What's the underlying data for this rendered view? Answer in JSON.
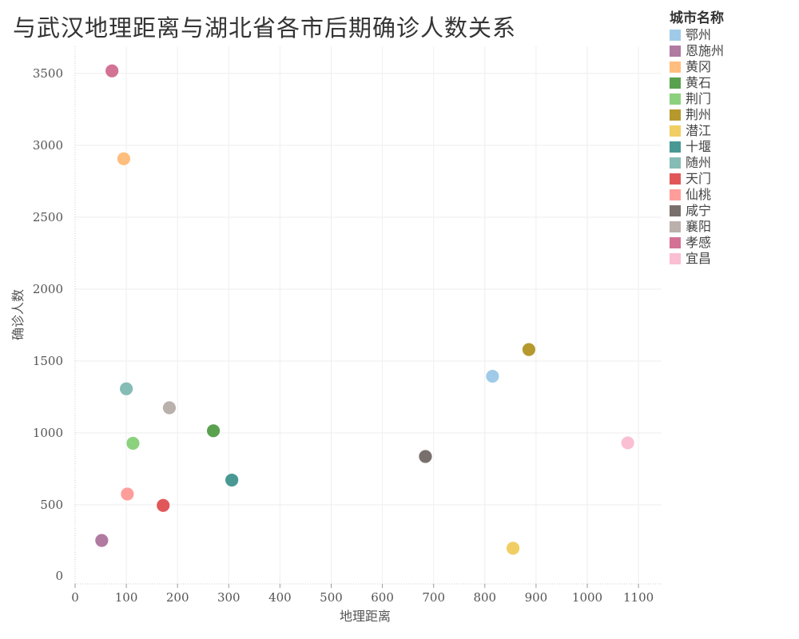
{
  "chart_data": {
    "type": "scatter",
    "title": "与武汉地理距离与湖北省各市后期确诊人数关系",
    "xlabel": "地理距离",
    "ylabel": "确诊人数",
    "xlim": [
      0,
      1150
    ],
    "ylim": [
      0,
      3650
    ],
    "xticks": [
      0,
      100,
      200,
      300,
      400,
      500,
      600,
      700,
      800,
      900,
      1000,
      1100
    ],
    "yticks": [
      0,
      500,
      1000,
      1500,
      2000,
      2500,
      3000,
      3500
    ],
    "grid": true,
    "legend_title": "城市名称",
    "legend_position": "top-right",
    "points": [
      {
        "name": "鄂州",
        "x": 815,
        "y": 1394,
        "color": "#a0cbe8"
      },
      {
        "name": "恩施州",
        "x": 52,
        "y": 252,
        "color": "#b07aa1"
      },
      {
        "name": "黄冈",
        "x": 95,
        "y": 2907,
        "color": "#ffbe7d"
      },
      {
        "name": "黄石",
        "x": 270,
        "y": 1015,
        "color": "#59a14f"
      },
      {
        "name": "荆门",
        "x": 113,
        "y": 928,
        "color": "#8cd17d"
      },
      {
        "name": "荆州",
        "x": 886,
        "y": 1580,
        "color": "#b6992d"
      },
      {
        "name": "潜江",
        "x": 855,
        "y": 198,
        "color": "#f1ce63"
      },
      {
        "name": "十堰",
        "x": 306,
        "y": 672,
        "color": "#499894"
      },
      {
        "name": "随州",
        "x": 100,
        "y": 1307,
        "color": "#86bcb6"
      },
      {
        "name": "天门",
        "x": 172,
        "y": 496,
        "color": "#e15759"
      },
      {
        "name": "仙桃",
        "x": 102,
        "y": 575,
        "color": "#ff9d9a"
      },
      {
        "name": "咸宁",
        "x": 684,
        "y": 836,
        "color": "#79706e"
      },
      {
        "name": "襄阳",
        "x": 184,
        "y": 1175,
        "color": "#bab0ac"
      },
      {
        "name": "孝感",
        "x": 72,
        "y": 3518,
        "color": "#d37295"
      },
      {
        "name": "宜昌",
        "x": 1079,
        "y": 931,
        "color": "#fabfd2"
      }
    ]
  }
}
